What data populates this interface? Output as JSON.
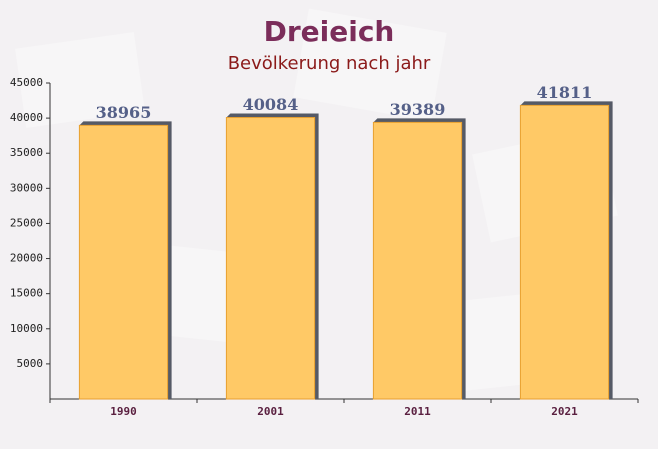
{
  "chart_data": {
    "type": "bar",
    "title": "Dreieich",
    "subtitle": "Bevölkerung nach jahr",
    "categories": [
      "1990",
      "2001",
      "2011",
      "2021"
    ],
    "values": [
      38965,
      40084,
      39389,
      41811
    ],
    "color": "#ffc966",
    "ylim": [
      0,
      45000
    ],
    "yticks": [
      5000,
      10000,
      15000,
      20000,
      25000,
      30000,
      35000,
      40000,
      45000
    ],
    "grid": false
  }
}
